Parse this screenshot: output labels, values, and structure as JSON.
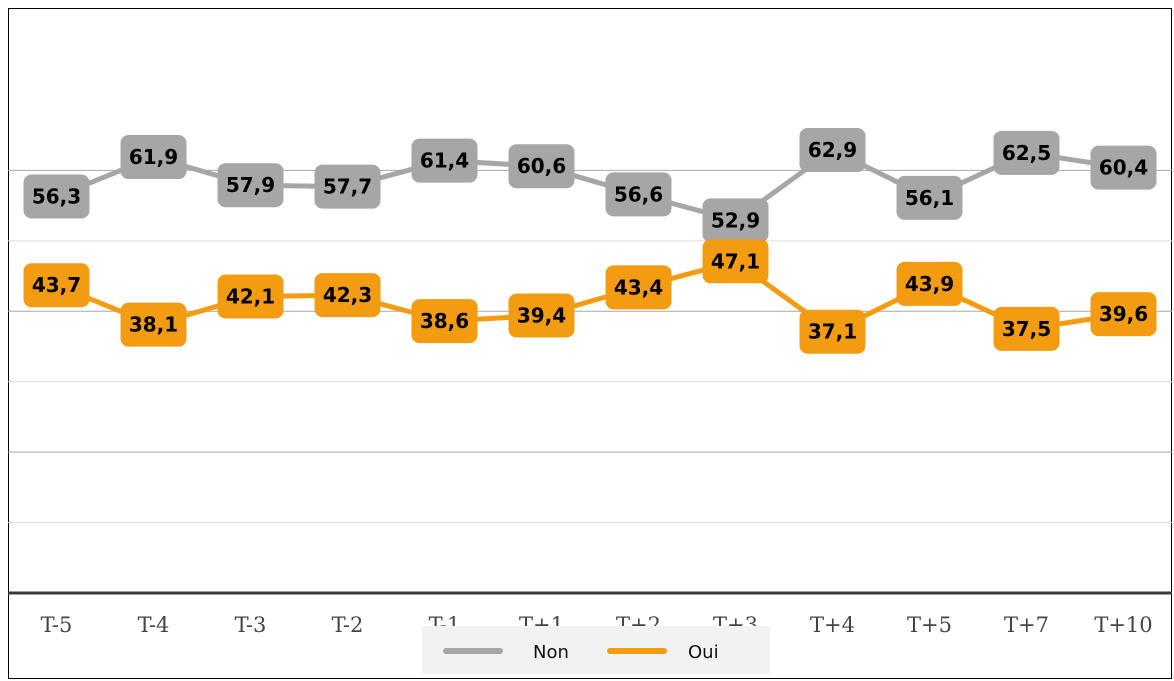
{
  "chart_data": {
    "type": "line",
    "categories": [
      "T-5",
      "T-4",
      "T-3",
      "T-2",
      "T-1",
      "T+1",
      "T+2",
      "T+3",
      "T+4",
      "T+5",
      "T+7",
      "T+10"
    ],
    "series": [
      {
        "name": "Non",
        "color": "#a6a6a6",
        "values": [
          56.3,
          61.9,
          57.9,
          57.7,
          61.4,
          60.6,
          56.6,
          52.9,
          62.9,
          56.1,
          62.5,
          60.4
        ],
        "labels": [
          "56,3",
          "61,9",
          "57,9",
          "57,7",
          "61,4",
          "60,6",
          "56,6",
          "52,9",
          "62,9",
          "56,1",
          "62,5",
          "60,4"
        ]
      },
      {
        "name": "Oui",
        "color": "#f39c12",
        "values": [
          43.7,
          38.1,
          42.1,
          42.3,
          38.6,
          39.4,
          43.4,
          47.1,
          37.1,
          43.9,
          37.5,
          39.6
        ],
        "labels": [
          "43,7",
          "38,1",
          "42,1",
          "42,3",
          "38,6",
          "39,4",
          "43,4",
          "47,1",
          "37,1",
          "43,9",
          "37,5",
          "39,6"
        ]
      }
    ],
    "ylim": [
      0,
      70
    ],
    "grid": true,
    "legend_position": "bottom"
  }
}
